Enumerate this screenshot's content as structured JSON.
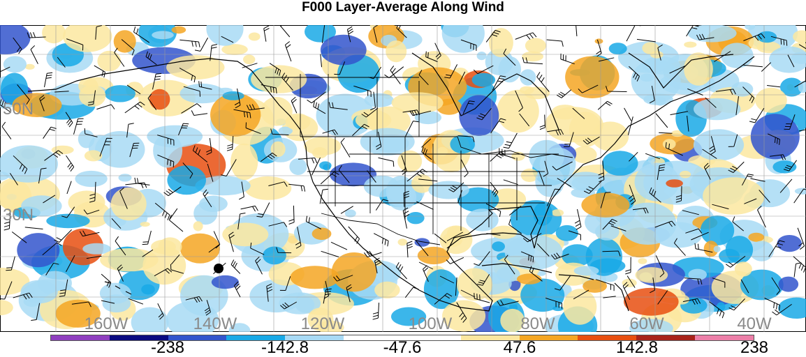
{
  "title": "F000 Layer-Average Along Wind",
  "map": {
    "lat_labels": [
      "50N",
      "30N"
    ],
    "lon_labels": [
      "160W",
      "140W",
      "120W",
      "100W",
      "80W",
      "60W",
      "40W"
    ],
    "label_color": "#8a8a8a"
  },
  "colorbar": {
    "colors": [
      "#8f3fbf",
      "#0a0a80",
      "#3355cc",
      "#19a9e6",
      "#a8daf5",
      "#ffffff",
      "#ffffff",
      "#fbe7a0",
      "#f5a623",
      "#e84f10",
      "#a8231a",
      "#ec7fa8"
    ],
    "labels": [
      "-238",
      "-142.8",
      "-47.6",
      "47.6",
      "142.8",
      "238"
    ]
  }
}
